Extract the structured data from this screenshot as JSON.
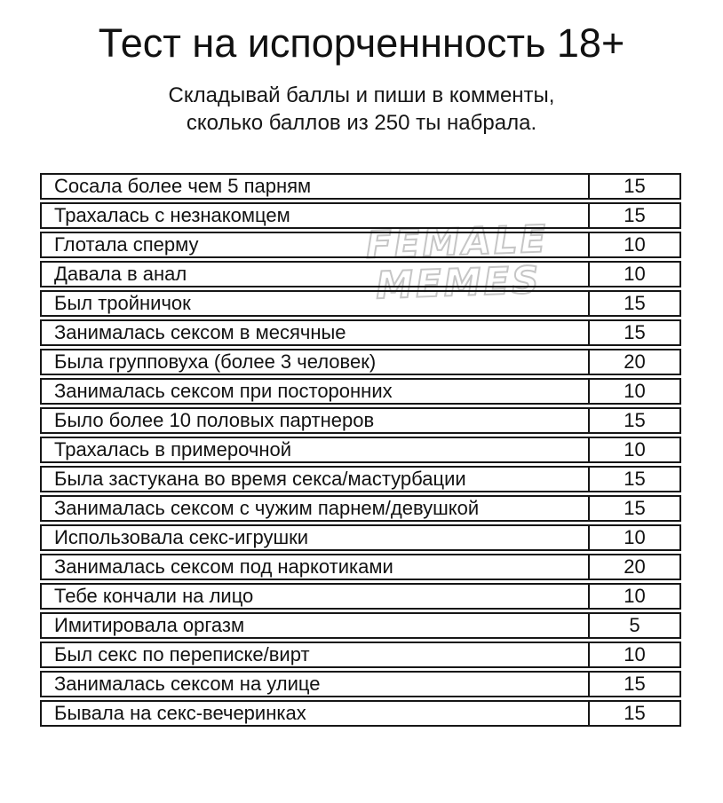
{
  "header": {
    "title": "Тест на испорченнность 18+",
    "subtitle_line1": "Складывай баллы и пиши в комменты,",
    "subtitle_line2": "сколько баллов из 250 ты набрала."
  },
  "watermark": {
    "line1": "FEMALE",
    "line2": "MEMES"
  },
  "table": {
    "max_points": "250",
    "rows": [
      {
        "label": "Сосала более чем 5 парням",
        "points": "15"
      },
      {
        "label": "Трахалась с незнакомцем",
        "points": "15"
      },
      {
        "label": "Глотала сперму",
        "points": "10"
      },
      {
        "label": "Давала в анал",
        "points": "10"
      },
      {
        "label": "Был тройничок",
        "points": "15"
      },
      {
        "label": "Занималась сексом в месячные",
        "points": "15"
      },
      {
        "label": "Была групповуха (более 3 человек)",
        "points": "20"
      },
      {
        "label": "Занималась сексом при посторонних",
        "points": "10"
      },
      {
        "label": "Было более 10 половых партнеров",
        "points": "15"
      },
      {
        "label": "Трахалась в примерочной",
        "points": "10"
      },
      {
        "label": "Была застукана во время секса/мастурбации",
        "points": "15"
      },
      {
        "label": "Занималась сексом с чужим парнем/девушкой",
        "points": "15"
      },
      {
        "label": "Использовала секс-игрушки",
        "points": "10"
      },
      {
        "label": "Занималась сексом под наркотиками",
        "points": "20"
      },
      {
        "label": "Тебе кончали на лицо",
        "points": "10"
      },
      {
        "label": "Имитировала оргазм",
        "points": "5"
      },
      {
        "label": "Был секс по переписке/вирт",
        "points": "10"
      },
      {
        "label": "Занималась сексом на улице",
        "points": "15"
      },
      {
        "label": "Бывала на секс-вечеринках",
        "points": "15"
      }
    ]
  },
  "colors": {
    "background": "#ffffff",
    "text": "#121212",
    "border": "#161616",
    "watermark_outline": "#c6c6c6",
    "watermark_fill": "#ffffff"
  }
}
